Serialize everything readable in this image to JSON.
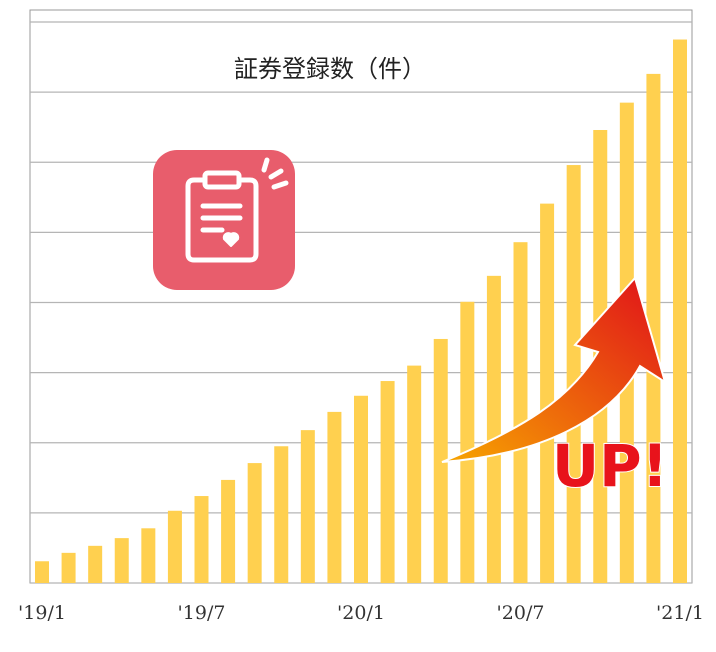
{
  "chart_data": {
    "type": "bar",
    "title": "証券登録数（件）",
    "categories": [
      "'19/1",
      null,
      null,
      null,
      null,
      null,
      "'19/7",
      null,
      null,
      null,
      null,
      null,
      "'20/1",
      null,
      null,
      null,
      null,
      null,
      "'20/7",
      null,
      null,
      null,
      null,
      null,
      "'21/1"
    ],
    "values": [
      0.31,
      0.43,
      0.53,
      0.64,
      0.78,
      1.03,
      1.24,
      1.47,
      1.71,
      1.95,
      2.18,
      2.44,
      2.67,
      2.88,
      3.1,
      3.48,
      4.01,
      4.38,
      4.86,
      5.41,
      5.96,
      6.46,
      6.85,
      7.26,
      7.75
    ],
    "color": "#ffd04f",
    "ylim": [
      0,
      8
    ],
    "yticks": [
      0,
      1,
      2,
      3,
      4,
      5,
      6,
      7,
      8
    ],
    "grid": true,
    "annotation": "UP!"
  }
}
